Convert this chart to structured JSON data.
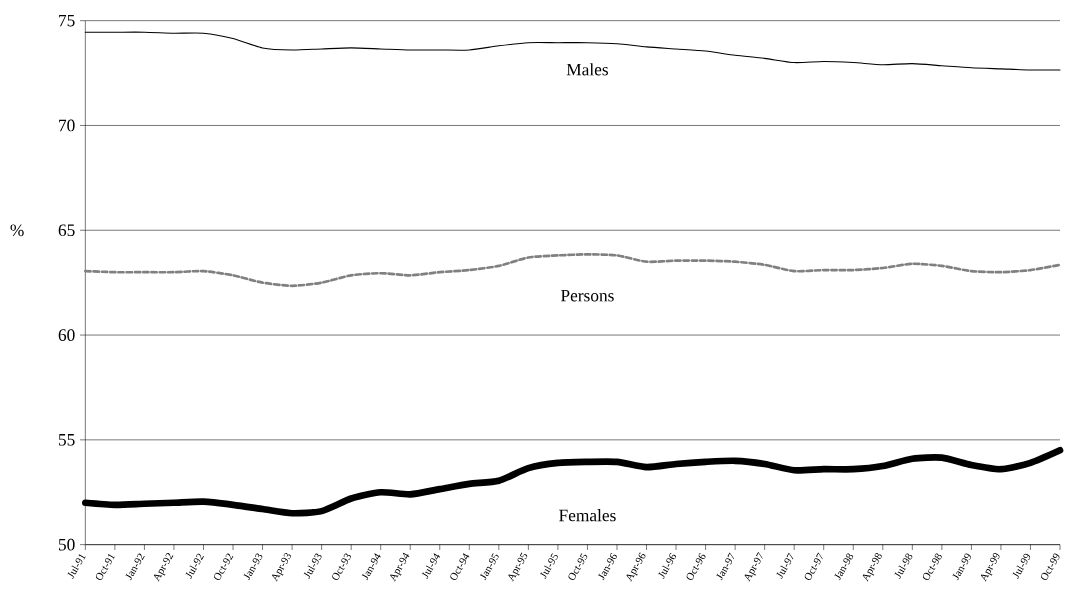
{
  "chart_data": {
    "type": "line",
    "ylabel": "%",
    "categories": [
      "Jul-91",
      "Oct-91",
      "Jan-92",
      "Apr-92",
      "Jul-92",
      "Oct-92",
      "Jan-93",
      "Apr-93",
      "Jul-93",
      "Oct-93",
      "Jan-94",
      "Apr-94",
      "Jul-94",
      "Oct-94",
      "Jan-95",
      "Apr-95",
      "Jul-95",
      "Oct-95",
      "Jan-96",
      "Apr-96",
      "Jul-96",
      "Oct-96",
      "Jan-97",
      "Apr-97",
      "Jul-97",
      "Oct-97",
      "Jan-98",
      "Apr-98",
      "Jul-98",
      "Oct-98",
      "Jan-99",
      "Apr-99",
      "Jul-99",
      "Oct-99"
    ],
    "series": [
      {
        "name": "Males",
        "color": "#000000",
        "line_style": "solid",
        "values": [
          74.45,
          74.45,
          74.45,
          74.4,
          74.4,
          74.15,
          73.7,
          73.6,
          73.65,
          73.7,
          73.65,
          73.6,
          73.6,
          73.6,
          73.8,
          73.95,
          73.95,
          73.95,
          73.9,
          73.75,
          73.65,
          73.55,
          73.35,
          73.2,
          73.0,
          73.05,
          73.0,
          72.9,
          72.95,
          72.85,
          72.75,
          72.7,
          72.65,
          72.65
        ]
      },
      {
        "name": "Persons",
        "color": "#808080",
        "line_style": "dashed",
        "values": [
          63.05,
          63.0,
          63.0,
          63.0,
          63.05,
          62.85,
          62.5,
          62.35,
          62.5,
          62.85,
          62.95,
          62.85,
          63.0,
          63.1,
          63.3,
          63.7,
          63.8,
          63.85,
          63.8,
          63.5,
          63.55,
          63.55,
          63.5,
          63.35,
          63.05,
          63.1,
          63.1,
          63.2,
          63.4,
          63.3,
          63.05,
          63.0,
          63.1,
          63.35
        ]
      },
      {
        "name": "Females",
        "color": "#000000",
        "line_style": "solid",
        "values": [
          52.0,
          51.9,
          51.95,
          52.0,
          52.05,
          51.9,
          51.7,
          51.5,
          51.6,
          52.2,
          52.5,
          52.4,
          52.65,
          52.9,
          53.05,
          53.65,
          53.9,
          53.95,
          53.95,
          53.7,
          53.85,
          53.95,
          54.0,
          53.85,
          53.55,
          53.6,
          53.6,
          53.75,
          54.1,
          54.15,
          53.8,
          53.6,
          53.9,
          54.5
        ]
      }
    ],
    "ylim": [
      50,
      75
    ],
    "yticks": [
      50,
      55,
      60,
      65,
      70,
      75
    ],
    "grid": "y"
  }
}
